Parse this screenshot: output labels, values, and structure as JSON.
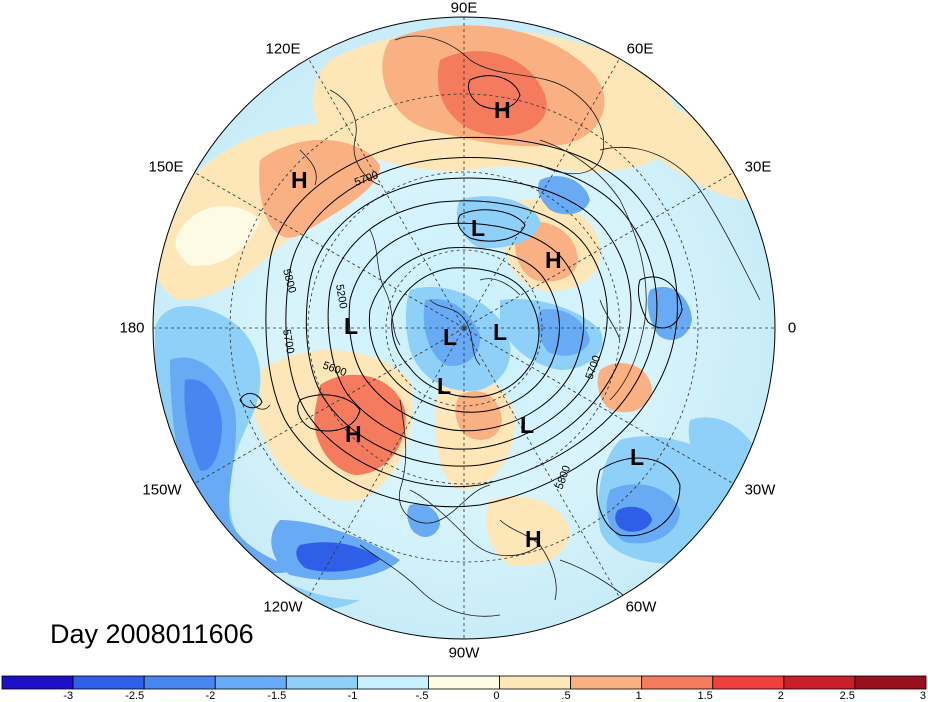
{
  "map": {
    "longitude_labels": [
      {
        "text": "90E",
        "id": "lon-90e"
      },
      {
        "text": "60E",
        "id": "lon-60e"
      },
      {
        "text": "120E",
        "id": "lon-120e"
      },
      {
        "text": "150E",
        "id": "lon-150e"
      },
      {
        "text": "30E",
        "id": "lon-30e"
      },
      {
        "text": "180",
        "id": "lon-180"
      },
      {
        "text": "0",
        "id": "lon-0"
      },
      {
        "text": "150W",
        "id": "lon-150w"
      },
      {
        "text": "30W",
        "id": "lon-30w"
      },
      {
        "text": "120W",
        "id": "lon-120w"
      },
      {
        "text": "60W",
        "id": "lon-60w"
      },
      {
        "text": "90W",
        "id": "lon-90w"
      }
    ],
    "pressure_centers": [
      {
        "type": "H"
      },
      {
        "type": "H"
      },
      {
        "type": "H"
      },
      {
        "type": "H"
      },
      {
        "type": "H"
      },
      {
        "type": "L"
      },
      {
        "type": "L"
      },
      {
        "type": "L"
      },
      {
        "type": "L"
      },
      {
        "type": "L"
      },
      {
        "type": "L"
      },
      {
        "type": "L"
      }
    ],
    "contour_labels": [
      "5700",
      "5800",
      "5200",
      "5700",
      "5600",
      "5700",
      "5800"
    ],
    "day_label": "Day 2008011606"
  },
  "colorbar": {
    "colors": [
      "#1f10c8",
      "#2f5fe8",
      "#4a86f0",
      "#68aaf4",
      "#8fd0f8",
      "#c8f0fd",
      "#fdfbe4",
      "#fde7b8",
      "#f9b184",
      "#f47b5e",
      "#ef3f3f",
      "#c81f2a",
      "#9a0f1d"
    ],
    "ticks": [
      "-3",
      "-2.5",
      "-2",
      "-1.5",
      "-1",
      "-.5",
      "0",
      ".5",
      "1",
      "1.5",
      "2",
      "2.5",
      "3"
    ],
    "anomaly_colors": {
      "strong_negative": "#1f10c8",
      "negative": "#4a86f0",
      "weak_negative": "#c8f0fd",
      "neutral": "#fdfbe4",
      "weak_positive": "#f9b184",
      "positive": "#ef3f3f"
    }
  }
}
